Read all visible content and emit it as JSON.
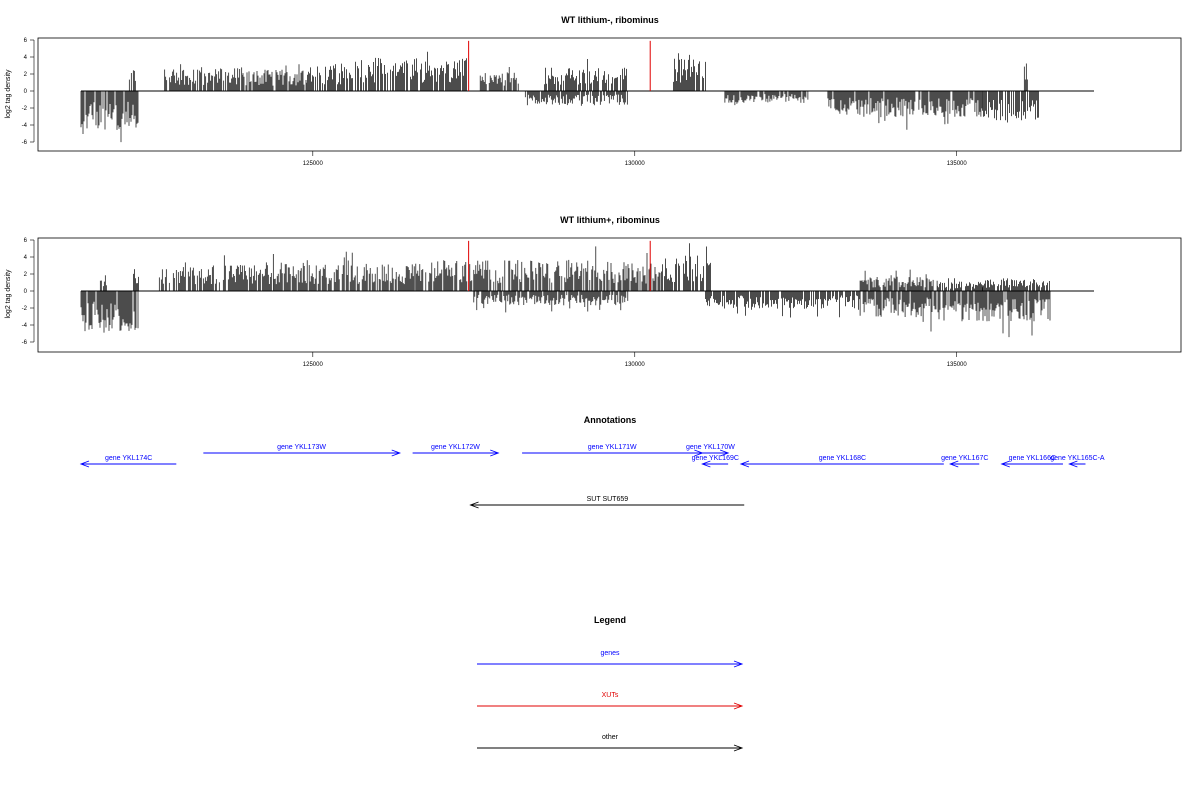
{
  "chart_data": [
    {
      "type": "bar",
      "title": "WT lithium-, ribominus",
      "ylabel": "log2 tag density",
      "ylim": [
        -7,
        6.5
      ],
      "yticks": [
        "6",
        "4",
        "2",
        "0",
        "-2",
        "-4",
        "-6"
      ],
      "xlim": [
        121400,
        137800
      ],
      "xticks": [
        "125000",
        "130000",
        "135000"
      ],
      "xtick_values": [
        125000,
        130000,
        135000
      ],
      "grid": false,
      "line_color": "#000000",
      "highlight_color": "#e00000",
      "positive_segments": [
        {
          "x_start": 122150,
          "x_end": 122250,
          "mean": 2.0
        },
        {
          "x_start": 122700,
          "x_end": 123900,
          "mean": 2.0
        },
        {
          "x_start": 123900,
          "x_end": 124900,
          "mean": 1.8
        },
        {
          "x_start": 124900,
          "x_end": 125600,
          "mean": 2.2
        },
        {
          "x_start": 125600,
          "x_end": 127400,
          "mean": 2.8
        },
        {
          "x_start": 127600,
          "x_end": 128200,
          "mean": 1.6
        },
        {
          "x_start": 128600,
          "x_end": 129900,
          "mean": 2.0
        },
        {
          "x_start": 130600,
          "x_end": 131100,
          "mean": 2.8
        },
        {
          "x_start": 136050,
          "x_end": 136120,
          "mean": 3.5
        }
      ],
      "negative_segments": [
        {
          "x_start": 121400,
          "x_end": 122300,
          "mean": -3.3
        },
        {
          "x_start": 128300,
          "x_end": 129900,
          "mean": -1.2
        },
        {
          "x_start": 131400,
          "x_end": 132700,
          "mean": -1.0
        },
        {
          "x_start": 133000,
          "x_end": 135400,
          "mean": -2.2
        },
        {
          "x_start": 135400,
          "x_end": 136300,
          "mean": -2.5
        }
      ],
      "highlights": [
        {
          "x": 127420,
          "y": 5.9
        },
        {
          "x": 130240,
          "y": 5.9
        }
      ]
    },
    {
      "type": "bar",
      "title": "WT lithium+, ribominus",
      "ylabel": "log2 tag density",
      "ylim": [
        -7,
        6.5
      ],
      "yticks": [
        "6",
        "4",
        "2",
        "0",
        "-2",
        "-4",
        "-6"
      ],
      "xlim": [
        121400,
        137800
      ],
      "xticks": [
        "125000",
        "130000",
        "135000"
      ],
      "xtick_values": [
        125000,
        130000,
        135000
      ],
      "grid": false,
      "line_color": "#000000",
      "highlight_color": "#e00000",
      "positive_segments": [
        {
          "x_start": 121700,
          "x_end": 121800,
          "mean": 1.5
        },
        {
          "x_start": 122200,
          "x_end": 122300,
          "mean": 2.0
        },
        {
          "x_start": 122600,
          "x_end": 124400,
          "mean": 2.2
        },
        {
          "x_start": 124400,
          "x_end": 126600,
          "mean": 2.3
        },
        {
          "x_start": 126600,
          "x_end": 127500,
          "mean": 2.6
        },
        {
          "x_start": 127500,
          "x_end": 129600,
          "mean": 2.6
        },
        {
          "x_start": 129600,
          "x_end": 130400,
          "mean": 2.4
        },
        {
          "x_start": 130400,
          "x_end": 131200,
          "mean": 3.0
        },
        {
          "x_start": 133500,
          "x_end": 134700,
          "mean": 1.2
        },
        {
          "x_start": 134700,
          "x_end": 135400,
          "mean": 0.8
        },
        {
          "x_start": 135400,
          "x_end": 136450,
          "mean": 1.0
        }
      ],
      "negative_segments": [
        {
          "x_start": 121400,
          "x_end": 122300,
          "mean": -3.5
        },
        {
          "x_start": 127500,
          "x_end": 129900,
          "mean": -1.2
        },
        {
          "x_start": 131100,
          "x_end": 133500,
          "mean": -1.5
        },
        {
          "x_start": 133500,
          "x_end": 134600,
          "mean": -2.2
        },
        {
          "x_start": 134600,
          "x_end": 136450,
          "mean": -2.6
        }
      ],
      "highlights": [
        {
          "x": 127420,
          "y": 5.9
        },
        {
          "x": 130240,
          "y": 5.9
        }
      ]
    }
  ],
  "annotations": {
    "title": "Annotations",
    "genes": [
      {
        "label": "gene YKL174C",
        "start": 121400,
        "end": 122880,
        "strand": "-",
        "color": "#0000ff",
        "track": 0
      },
      {
        "label": "gene YKL173W",
        "start": 123300,
        "end": 126350,
        "strand": "+",
        "color": "#0000ff",
        "track": 1
      },
      {
        "label": "gene YKL172W",
        "start": 126550,
        "end": 127880,
        "strand": "+",
        "color": "#0000ff",
        "track": 1
      },
      {
        "label": "gene YKL171W",
        "start": 128250,
        "end": 131050,
        "strand": "+",
        "color": "#0000ff",
        "track": 1
      },
      {
        "label": "gene YKL170W",
        "start": 130900,
        "end": 131450,
        "strand": "+",
        "color": "#0000ff",
        "track": 1
      },
      {
        "label": "gene YKL169C",
        "start": 131050,
        "end": 131450,
        "strand": "-",
        "color": "#0000ff",
        "track": 0
      },
      {
        "label": "gene YKL168C",
        "start": 131650,
        "end": 134800,
        "strand": "-",
        "color": "#0000ff",
        "track": 0
      },
      {
        "label": "gene YKL167C",
        "start": 134900,
        "end": 135350,
        "strand": "-",
        "color": "#0000ff",
        "track": 0
      },
      {
        "label": "gene YKL166C",
        "start": 135700,
        "end": 136650,
        "strand": "-",
        "color": "#0000ff",
        "track": 0
      },
      {
        "label": "gene YKL165C-A",
        "start": 136750,
        "end": 137000,
        "strand": "-",
        "color": "#0000ff",
        "track": 0
      },
      {
        "label": "SUT SUT659",
        "start": 127450,
        "end": 131700,
        "strand": "-",
        "color": "#000000",
        "track": 2
      }
    ]
  },
  "legend": {
    "title": "Legend",
    "items": [
      {
        "label": "genes",
        "color": "#0000ff"
      },
      {
        "label": "XUTs",
        "color": "#e00000"
      },
      {
        "label": "other",
        "color": "#000000"
      }
    ]
  }
}
